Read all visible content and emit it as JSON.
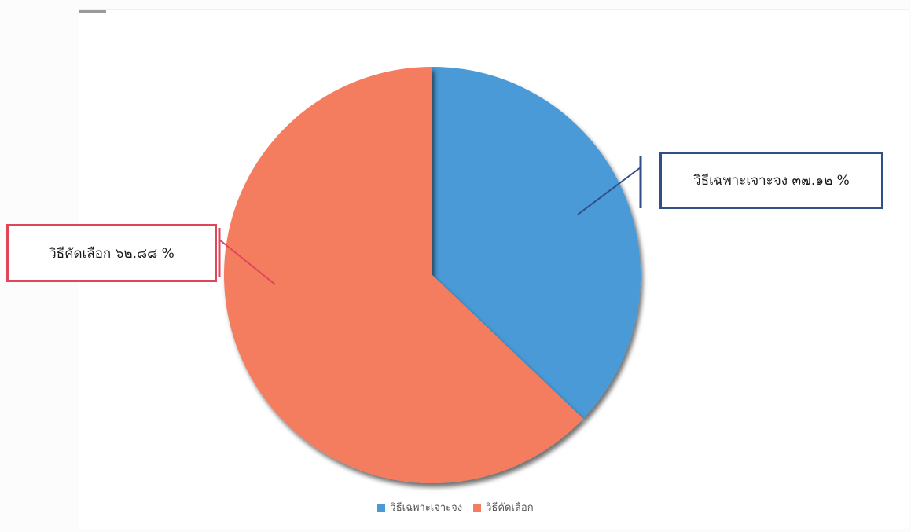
{
  "chart_data": {
    "type": "pie",
    "title": "",
    "slices": [
      {
        "name": "วิธีเฉพาะเจาะจง",
        "value": 37.12,
        "color": "#4a9ad6"
      },
      {
        "name": "วิธีคัดเลือก",
        "value": 62.88,
        "color": "#f47c5f"
      }
    ],
    "data_labels": [
      "วิธีเฉพาะเจาะจง ๓๗.๑๒ %",
      "วิธีคัดเลือก ๖๒.๘๘ %"
    ],
    "legend": [
      "วิธีเฉพาะเจาะจง",
      "วิธีคัดเลือก"
    ],
    "legend_position": "bottom",
    "callout_colors": [
      "#2f4f86",
      "#e0465a"
    ]
  }
}
